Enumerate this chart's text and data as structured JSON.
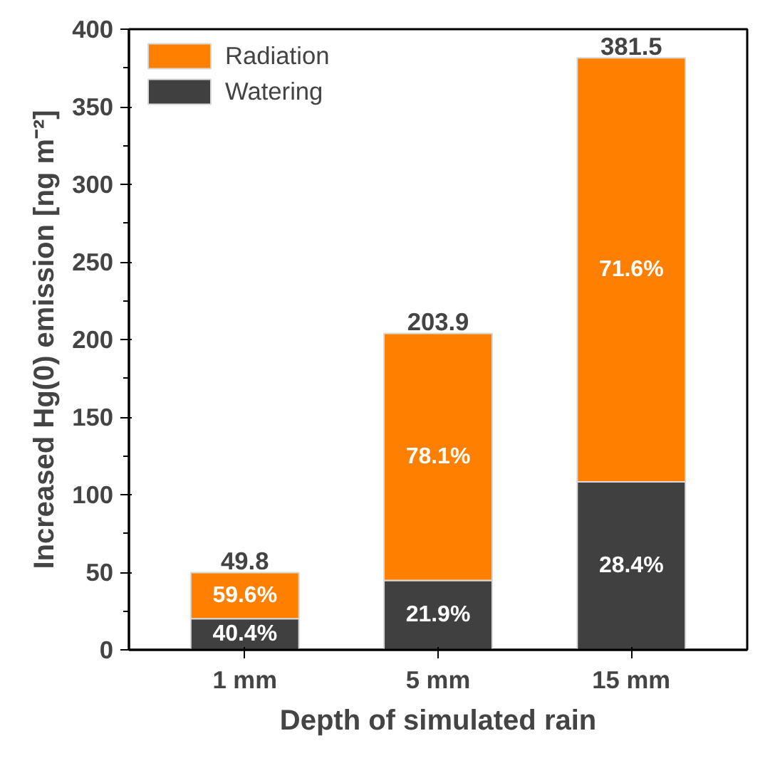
{
  "chart_data": {
    "type": "bar",
    "stacked": true,
    "xlabel": "Depth of simulated rain",
    "ylabel": "Increased Hg(0) emission [ng m⁻²]",
    "categories": [
      "1 mm",
      "5 mm",
      "15 mm"
    ],
    "series": [
      {
        "name": "Watering",
        "color": "#404040",
        "values": [
          20.1,
          44.7,
          108.3
        ]
      },
      {
        "name": "Radiation",
        "color": "#ff8000",
        "values": [
          29.7,
          159.2,
          273.2
        ]
      }
    ],
    "annotations": [
      "40.4%",
      "21.9%",
      "28.4%",
      "59.6%",
      "78.1%",
      "71.6%"
    ],
    "totals": [
      "49.8",
      "203.9",
      "381.5"
    ],
    "ylim": [
      0,
      400
    ],
    "yticks": [
      0,
      50,
      100,
      150,
      200,
      250,
      300,
      350,
      400
    ],
    "grid": false,
    "legend": "top left"
  }
}
